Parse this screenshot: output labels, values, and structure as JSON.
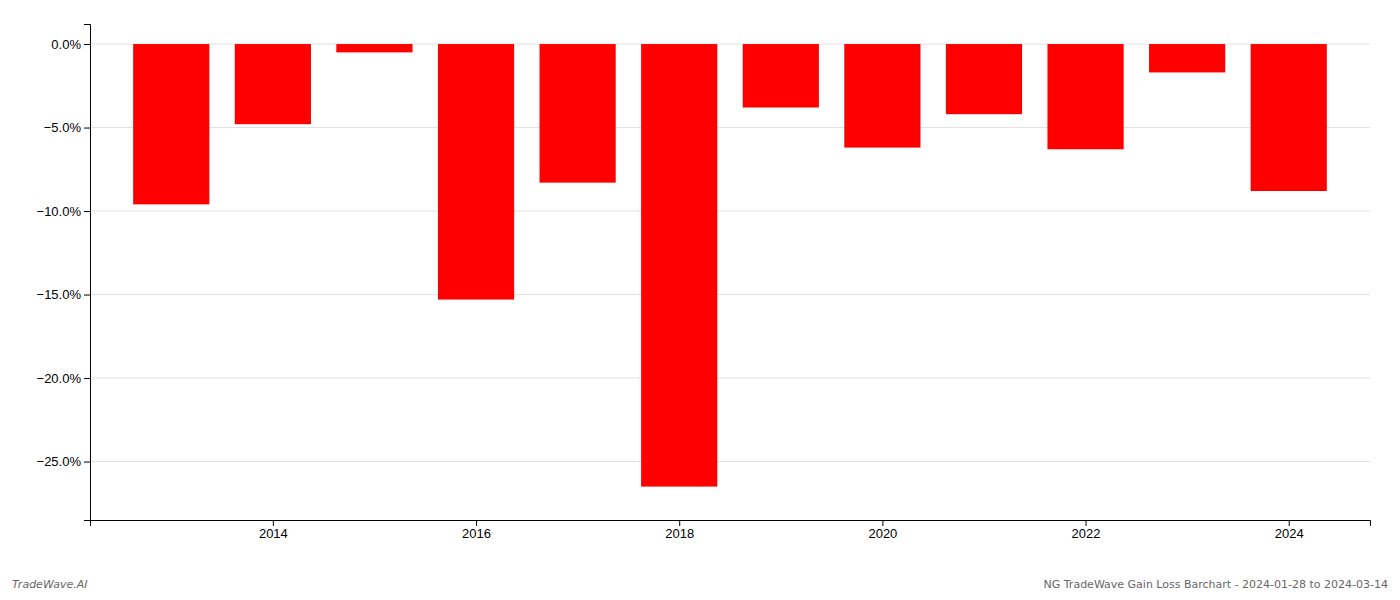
{
  "chart_data": {
    "type": "bar",
    "x": [
      2013,
      2014,
      2015,
      2016,
      2017,
      2018,
      2019,
      2020,
      2021,
      2022,
      2023,
      2024
    ],
    "values": [
      -9.6,
      -4.8,
      -0.5,
      -15.3,
      -8.3,
      -26.5,
      -3.8,
      -6.2,
      -4.2,
      -6.3,
      -1.7,
      -8.8
    ],
    "color": "#ff0000",
    "xlim": [
      2012.2,
      2024.8
    ],
    "xticks": [
      2014,
      2016,
      2018,
      2020,
      2022,
      2024
    ],
    "ylim": [
      -28.5,
      1.2
    ],
    "yticks": [
      {
        "value": 0.0,
        "label": "0.0%"
      },
      {
        "value": -5.0,
        "label": "−5.0%"
      },
      {
        "value": -10.0,
        "label": "−10.0%"
      },
      {
        "value": -15.0,
        "label": "−15.0%"
      },
      {
        "value": -20.0,
        "label": "−20.0%"
      },
      {
        "value": -25.0,
        "label": "−25.0%"
      }
    ],
    "grid": true,
    "annotations": [
      "TradeWave.AI",
      "NG TradeWave Gain Loss Barchart - 2024-01-28 to 2024-03-14"
    ]
  }
}
